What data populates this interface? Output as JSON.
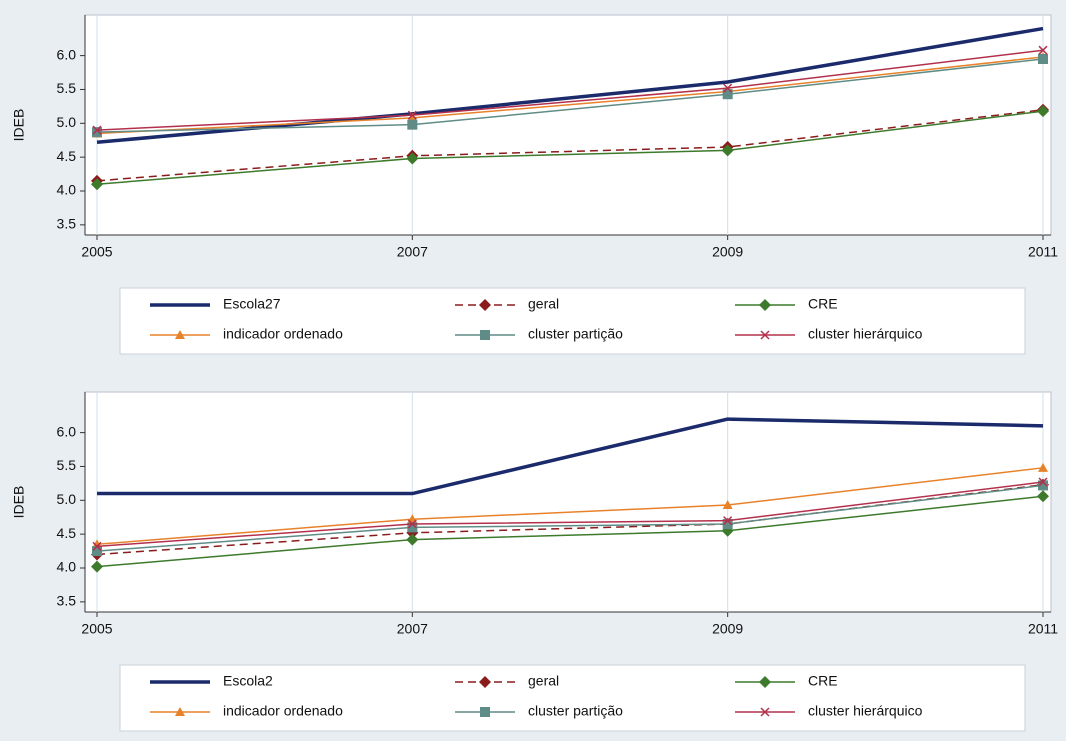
{
  "chart_data": [
    {
      "type": "line",
      "y_label": "IDEB",
      "grid": "x",
      "x": [
        2005,
        2007,
        2009,
        2011
      ],
      "xlim": [
        2005,
        2011
      ],
      "xticks": [
        2005,
        2007,
        2009,
        2011
      ],
      "ylim": [
        3.35,
        6.6
      ],
      "yticks": [
        3.5,
        {
          "value": 4,
          "label": "4.0"
        },
        4.5,
        {
          "value": 5,
          "label": "5.0"
        },
        5.5,
        {
          "value": 6,
          "label": "6.0"
        }
      ],
      "series": [
        {
          "name": "Escola27",
          "color": "#1b2a6b",
          "width": 3.5,
          "marker": "none",
          "values": [
            4.72,
            5.14,
            5.61,
            6.4
          ]
        },
        {
          "name": "geral",
          "color": "#8b1c1c",
          "width": 1.5,
          "dash": true,
          "marker": "diamond",
          "values": [
            4.15,
            4.52,
            4.65,
            5.2
          ]
        },
        {
          "name": "CRE",
          "color": "#3d7a2c",
          "width": 1.5,
          "marker": "diamond",
          "values": [
            4.1,
            4.48,
            4.6,
            5.18
          ]
        },
        {
          "name": "indicador ordenado",
          "color": "#e8822a",
          "width": 1.5,
          "marker": "triangle",
          "values": [
            4.85,
            5.08,
            5.47,
            5.98
          ]
        },
        {
          "name": "cluster partição",
          "color": "#5f8c86",
          "width": 1.5,
          "marker": "square",
          "values": [
            4.87,
            4.98,
            5.43,
            5.95
          ]
        },
        {
          "name": "cluster hierárquico",
          "color": "#b3304c",
          "width": 1.5,
          "marker": "x",
          "values": [
            4.9,
            5.12,
            5.52,
            6.08
          ]
        }
      ]
    },
    {
      "type": "line",
      "y_label": "IDEB",
      "grid": "x",
      "x": [
        2005,
        2007,
        2009,
        2011
      ],
      "xlim": [
        2005,
        2011
      ],
      "xticks": [
        2005,
        2007,
        2009,
        2011
      ],
      "ylim": [
        3.35,
        6.6
      ],
      "yticks": [
        3.5,
        {
          "value": 4,
          "label": "4.0"
        },
        4.5,
        {
          "value": 5,
          "label": "5.0"
        },
        5.5,
        {
          "value": 6,
          "label": "6.0"
        }
      ],
      "series": [
        {
          "name": "Escola2",
          "color": "#1b2a6b",
          "width": 3.5,
          "marker": "none",
          "values": [
            5.1,
            5.1,
            6.2,
            6.1
          ]
        },
        {
          "name": "geral",
          "color": "#8b1c1c",
          "width": 1.5,
          "dash": true,
          "marker": "diamond",
          "values": [
            4.2,
            4.52,
            4.65,
            5.23
          ]
        },
        {
          "name": "CRE",
          "color": "#3d7a2c",
          "width": 1.5,
          "marker": "diamond",
          "values": [
            4.02,
            4.42,
            4.55,
            5.06
          ]
        },
        {
          "name": "indicador ordenado",
          "color": "#e8822a",
          "width": 1.5,
          "marker": "triangle",
          "values": [
            4.35,
            4.72,
            4.93,
            5.48
          ]
        },
        {
          "name": "cluster partição",
          "color": "#5f8c86",
          "width": 1.5,
          "marker": "square",
          "values": [
            4.25,
            4.6,
            4.65,
            5.22
          ]
        },
        {
          "name": "cluster hierárquico",
          "color": "#b3304c",
          "width": 1.5,
          "marker": "x",
          "values": [
            4.32,
            4.65,
            4.7,
            5.27
          ]
        }
      ]
    }
  ]
}
